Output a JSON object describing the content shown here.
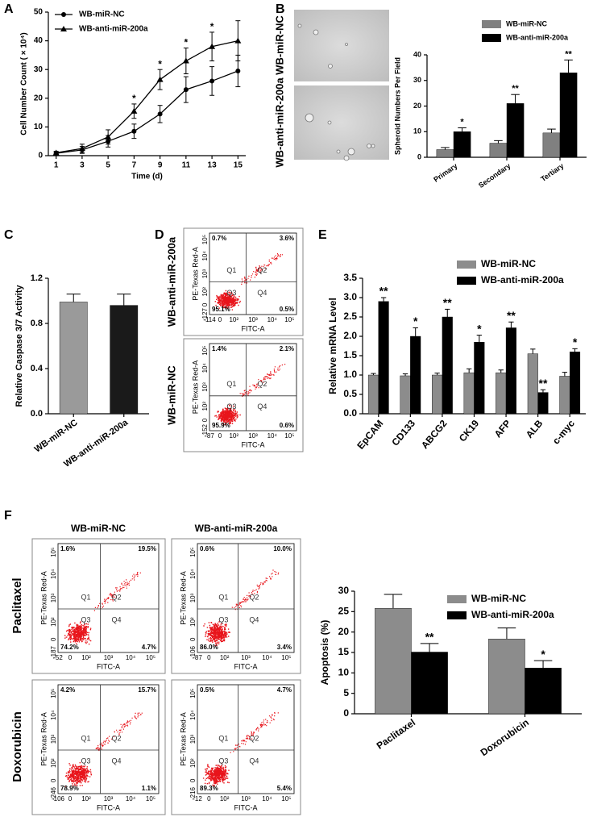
{
  "panel_labels": [
    "A",
    "B",
    "C",
    "D",
    "E",
    "F"
  ],
  "chart_data": [
    {
      "type": "line",
      "x": [
        1,
        3,
        5,
        7,
        9,
        11,
        13,
        15
      ],
      "xlim": [
        0.4,
        15.6
      ],
      "xticks": [
        1,
        3,
        5,
        7,
        9,
        11,
        13,
        15
      ],
      "ylim": [
        0,
        50
      ],
      "yticks": [
        0,
        10,
        20,
        30,
        40,
        50
      ],
      "xlabel": "Time (d)",
      "ylabel": "Cell Number Count ( × 10⁴)",
      "series": [
        {
          "name": "WB-miR-NC",
          "color": "#000000",
          "marker": "circle",
          "values": [
            0.8,
            2,
            5,
            8.5,
            14.5,
            23,
            26,
            29.5
          ],
          "errors": [
            0.5,
            1.2,
            2,
            2.5,
            3,
            4.5,
            5,
            5.5
          ]
        },
        {
          "name": "WB-anti-miR-200a",
          "color": "#000000",
          "marker": "triangle",
          "values": [
            1,
            2.5,
            6.5,
            15.5,
            26.5,
            33,
            38,
            40
          ],
          "errors": [
            0.5,
            1.5,
            2.5,
            2.5,
            3.5,
            4.5,
            5,
            7
          ]
        }
      ],
      "annotations": [
        {
          "x": 7,
          "label": "*"
        },
        {
          "x": 9,
          "label": "*"
        },
        {
          "x": 11,
          "label": "*"
        },
        {
          "x": 13,
          "label": "*"
        }
      ]
    },
    {
      "type": "bar",
      "categories": [
        "Primary",
        "Secondary",
        "Tertiary"
      ],
      "ylim": [
        0,
        40
      ],
      "yticks": [
        0,
        10,
        20,
        30,
        40
      ],
      "ylabel": "Spheroid Numbers Per Field",
      "series": [
        {
          "name": "WB-miR-NC",
          "color": "#808080",
          "values": [
            3,
            5.5,
            9.5
          ],
          "errors": [
            0.8,
            1,
            1.5
          ]
        },
        {
          "name": "WB-anti-miR-200a",
          "color": "#000000",
          "values": [
            10,
            21,
            33
          ],
          "errors": [
            1.5,
            3.5,
            5
          ],
          "significance": [
            "*",
            "**",
            "**"
          ]
        }
      ]
    },
    {
      "type": "bar",
      "categories": [
        "WB-miR-NC",
        "WB-anti-miR-200a"
      ],
      "values": [
        0.99,
        0.96
      ],
      "errors": [
        0.07,
        0.1
      ],
      "colors": [
        "#9a9a9a",
        "#1a1a1a"
      ],
      "ylim": [
        0,
        1.2
      ],
      "yticks": [
        {
          "value": 0,
          "label": "0.0"
        },
        0.4,
        0.8,
        1.2
      ],
      "ylabel": "Relative Caspase 3/7 Activity"
    },
    {
      "type": "bar",
      "categories": [
        "EpCAM",
        "CD133",
        "ABCG2",
        "CK19",
        "AFP",
        "ALB",
        "c-myc"
      ],
      "ylim": [
        0,
        3.5
      ],
      "yticks": [
        {
          "value": 0,
          "label": "0.0"
        },
        0.5,
        {
          "value": 1,
          "label": "1.0"
        },
        1.5,
        {
          "value": 2,
          "label": "2.0"
        },
        2.5,
        {
          "value": 3,
          "label": "3.0"
        },
        3.5
      ],
      "ylabel": "Relative mRNA Level",
      "series": [
        {
          "name": "WB-miR-NC",
          "color": "#8c8c8c",
          "values": [
            1.0,
            0.98,
            1.0,
            1.06,
            1.06,
            1.55,
            0.97
          ],
          "errors": [
            0.04,
            0.05,
            0.05,
            0.1,
            0.07,
            0.12,
            0.1
          ]
        },
        {
          "name": "WB-anti-miR-200a",
          "color": "#000000",
          "values": [
            2.9,
            2.0,
            2.5,
            1.85,
            2.22,
            0.55,
            1.6
          ],
          "errors": [
            0.1,
            0.22,
            0.2,
            0.18,
            0.15,
            0.07,
            0.08
          ],
          "significance": [
            "**",
            "*",
            "**",
            "*",
            "**",
            "**",
            "*"
          ]
        }
      ]
    },
    {
      "type": "bar",
      "categories": [
        "Paclitaxel",
        "Doxorubicin"
      ],
      "ylim": [
        0,
        30
      ],
      "yticks": [
        0,
        5,
        10,
        15,
        20,
        25,
        30
      ],
      "ylabel": "Apoptosis (%)",
      "series": [
        {
          "name": "WB-miR-NC",
          "color": "#8c8c8c",
          "values": [
            25.8,
            18.3
          ],
          "errors": [
            3.4,
            2.7
          ]
        },
        {
          "name": "WB-anti-miR-200a",
          "color": "#000000",
          "values": [
            15.1,
            11.2
          ],
          "errors": [
            2.1,
            1.8
          ],
          "significance": [
            "**",
            "*"
          ]
        }
      ]
    }
  ],
  "images": {
    "labels": [
      "WB-miR-NC",
      "WB-anti-miR-200a"
    ]
  },
  "flow_d": {
    "plots": [
      {
        "label": "WB-anti-miR-200a",
        "y_axis": "PE-Texas Red-A",
        "x_axis": "FITC-A",
        "quadrants": [
          "Q1",
          "Q2",
          "Q3",
          "Q4"
        ],
        "percents": [
          "0.7%",
          "3.6%",
          "95.1%",
          "0.5%"
        ],
        "xticks": [
          "-114",
          "0",
          "10²",
          "10³",
          "10⁴",
          "10⁵"
        ],
        "yticks": [
          "-127",
          "0",
          "10²",
          "10³",
          "10⁴",
          "10⁵"
        ]
      },
      {
        "label": "WB-miR-NC",
        "y_axis": "PE-Texas Red-A",
        "x_axis": "FITC-A",
        "quadrants": [
          "Q1",
          "Q2",
          "Q3",
          "Q4"
        ],
        "percents": [
          "1.4%",
          "2.1%",
          "95.9%",
          "0.6%"
        ],
        "xticks": [
          "-87",
          "0",
          "10²",
          "10³",
          "10⁴",
          "10⁵"
        ],
        "yticks": [
          "-152",
          "0",
          "10²",
          "10³",
          "10⁴",
          "10⁵"
        ]
      }
    ]
  },
  "flow_f": {
    "columns": [
      "WB-miR-NC",
      "WB-anti-miR-200a"
    ],
    "rows": [
      "Paclitaxel",
      "Doxorubicin"
    ],
    "plots": [
      {
        "y_axis": "PE-Texas Red-A",
        "x_axis": "FITC-A",
        "quadrants": [
          "Q1",
          "Q2",
          "Q3",
          "Q4"
        ],
        "percents": [
          "1.6%",
          "19.5%",
          "74.2%",
          "4.7%"
        ],
        "xticks": [
          "-52",
          "0",
          "10²",
          "10³",
          "10⁴",
          "10⁵"
        ],
        "yticks": [
          "-187",
          "0",
          "10²",
          "10³",
          "10⁴",
          "10⁵"
        ]
      },
      {
        "y_axis": "PE-Texas Red-A",
        "x_axis": "FITC-A",
        "quadrants": [
          "Q1",
          "Q2",
          "Q3",
          "Q4"
        ],
        "percents": [
          "0.6%",
          "10.0%",
          "86.0%",
          "3.4%"
        ],
        "xticks": [
          "-87",
          "0",
          "10²",
          "10³",
          "10⁴",
          "10⁵"
        ],
        "yticks": [
          "-106",
          "0",
          "10²",
          "10³",
          "10⁴",
          "10⁵"
        ]
      },
      {
        "y_axis": "PE-Texas Red-A",
        "x_axis": "FITC-A",
        "quadrants": [
          "Q1",
          "Q2",
          "Q3",
          "Q4"
        ],
        "percents": [
          "4.2%",
          "15.7%",
          "78.9%",
          "1.1%"
        ],
        "xticks": [
          "-106",
          "0",
          "10²",
          "10³",
          "10⁴",
          "10⁵"
        ],
        "yticks": [
          "-246",
          "0",
          "10²",
          "10³",
          "10⁴",
          "10⁵"
        ]
      },
      {
        "y_axis": "PE-Texas Red-A",
        "x_axis": "FITC-A",
        "quadrants": [
          "Q1",
          "Q2",
          "Q3",
          "Q4"
        ],
        "percents": [
          "0.5%",
          "4.7%",
          "89.3%",
          "5.4%"
        ],
        "xticks": [
          "-12",
          "0",
          "10²",
          "10³",
          "10⁴",
          "10⁵"
        ],
        "yticks": [
          "-216",
          "0",
          "10²",
          "10³",
          "10⁴",
          "10⁵"
        ]
      }
    ]
  }
}
